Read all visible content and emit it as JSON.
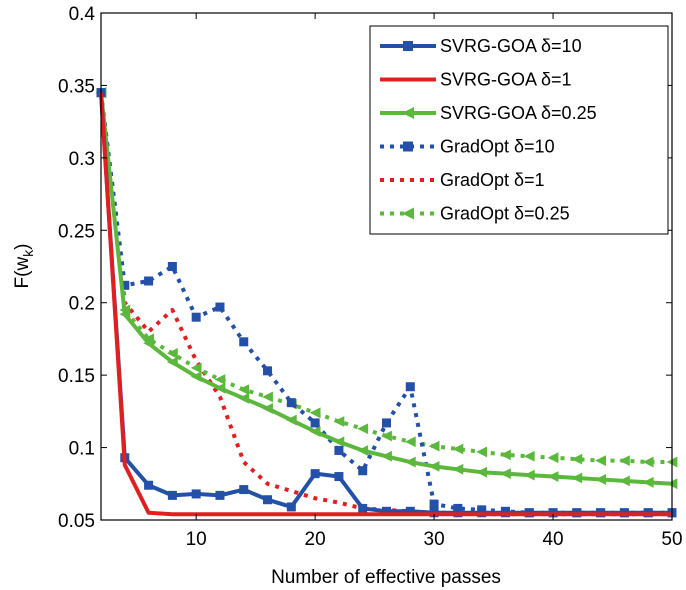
{
  "chart_data": {
    "type": "line",
    "xlabel": "Number of effective passes",
    "ylabel_main": "F(w",
    "ylabel_sub": "k",
    "ylabel_close": ")",
    "xlim": [
      2,
      50
    ],
    "ylim": [
      0.05,
      0.4
    ],
    "xticks": [
      10,
      20,
      30,
      40,
      50
    ],
    "yticks": [
      0.05,
      0.1,
      0.15,
      0.2,
      0.25,
      0.3,
      0.35,
      0.4
    ],
    "ytick_labels": [
      "0.05",
      "0.1",
      "0.15",
      "0.2",
      "0.25",
      "0.3",
      "0.35",
      "0.4"
    ],
    "grid": false,
    "legend_position": "top-right",
    "series": [
      {
        "name": "SVRG-GOA δ=10",
        "color": "#2350a8",
        "style": "solid",
        "marker": "square",
        "x": [
          2,
          4,
          6,
          8,
          10,
          12,
          14,
          16,
          18,
          20,
          22,
          24,
          26,
          28,
          30,
          32,
          34,
          36,
          38,
          40,
          42,
          44,
          46,
          48,
          50
        ],
        "y": [
          0.345,
          0.093,
          0.074,
          0.067,
          0.068,
          0.067,
          0.071,
          0.064,
          0.059,
          0.082,
          0.08,
          0.058,
          0.056,
          0.056,
          0.055,
          0.055,
          0.055,
          0.055,
          0.055,
          0.055,
          0.055,
          0.055,
          0.055,
          0.055,
          0.055
        ]
      },
      {
        "name": "SVRG-GOA δ=1",
        "color": "#e02020",
        "style": "solid",
        "marker": "none",
        "x": [
          2,
          4,
          6,
          8,
          10,
          12,
          14,
          16,
          18,
          20,
          22,
          24,
          26,
          28,
          30,
          32,
          34,
          36,
          38,
          40,
          42,
          44,
          46,
          48,
          50
        ],
        "y": [
          0.345,
          0.088,
          0.055,
          0.054,
          0.054,
          0.054,
          0.054,
          0.054,
          0.054,
          0.054,
          0.054,
          0.054,
          0.054,
          0.054,
          0.054,
          0.054,
          0.054,
          0.054,
          0.054,
          0.054,
          0.054,
          0.054,
          0.054,
          0.054,
          0.054
        ]
      },
      {
        "name": "SVRG-GOA δ=0.25",
        "color": "#5cb83c",
        "style": "solid",
        "marker": "triangle-left",
        "x": [
          2,
          4,
          6,
          8,
          10,
          12,
          14,
          16,
          18,
          20,
          22,
          24,
          26,
          28,
          30,
          32,
          34,
          36,
          38,
          40,
          42,
          44,
          46,
          48,
          50
        ],
        "y": [
          0.345,
          0.192,
          0.172,
          0.159,
          0.149,
          0.141,
          0.134,
          0.127,
          0.119,
          0.111,
          0.104,
          0.098,
          0.094,
          0.09,
          0.087,
          0.085,
          0.083,
          0.082,
          0.081,
          0.08,
          0.079,
          0.078,
          0.077,
          0.076,
          0.075
        ]
      },
      {
        "name": "GradOpt δ=10",
        "color": "#2350a8",
        "style": "dotted",
        "marker": "square",
        "x": [
          2,
          4,
          6,
          8,
          10,
          12,
          14,
          16,
          18,
          20,
          22,
          24,
          26,
          28,
          30,
          32,
          34,
          36,
          38,
          40,
          42,
          44,
          46,
          48,
          50
        ],
        "y": [
          0.345,
          0.212,
          0.215,
          0.225,
          0.19,
          0.197,
          0.173,
          0.153,
          0.131,
          0.117,
          0.098,
          0.084,
          0.117,
          0.142,
          0.061,
          0.058,
          0.057,
          0.056,
          0.055,
          0.055,
          0.055,
          0.055,
          0.055,
          0.055,
          0.055
        ]
      },
      {
        "name": "GradOpt δ=1",
        "color": "#e02020",
        "style": "dotted",
        "marker": "none",
        "x": [
          2,
          4,
          6,
          8,
          10,
          12,
          14,
          16,
          18,
          20,
          22,
          24,
          26,
          28,
          30,
          32,
          34,
          36,
          38,
          40,
          42,
          44,
          46,
          48,
          50
        ],
        "y": [
          0.345,
          0.2,
          0.18,
          0.195,
          0.16,
          0.135,
          0.09,
          0.075,
          0.07,
          0.065,
          0.062,
          0.058,
          0.057,
          0.056,
          0.055,
          0.055,
          0.054,
          0.054,
          0.054,
          0.054,
          0.054,
          0.054,
          0.054,
          0.054,
          0.054
        ]
      },
      {
        "name": "GradOpt δ=0.25",
        "color": "#5cb83c",
        "style": "dotted",
        "marker": "triangle-left",
        "x": [
          2,
          4,
          6,
          8,
          10,
          12,
          14,
          16,
          18,
          20,
          22,
          24,
          26,
          28,
          30,
          32,
          34,
          36,
          38,
          40,
          42,
          44,
          46,
          48,
          50
        ],
        "y": [
          0.345,
          0.195,
          0.175,
          0.165,
          0.155,
          0.147,
          0.14,
          0.135,
          0.13,
          0.124,
          0.118,
          0.113,
          0.108,
          0.104,
          0.101,
          0.099,
          0.097,
          0.095,
          0.094,
          0.093,
          0.092,
          0.091,
          0.091,
          0.09,
          0.09
        ]
      }
    ]
  }
}
